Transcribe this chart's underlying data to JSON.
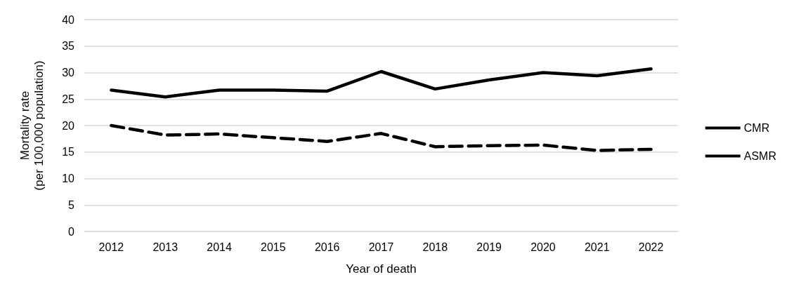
{
  "chart_data": {
    "type": "line",
    "xlabel": "Year of death",
    "ylabel": "Mortality rate\n(per 100,000 population)",
    "categories": [
      "2012",
      "2013",
      "2014",
      "2015",
      "2016",
      "2017",
      "2018",
      "2019",
      "2020",
      "2021",
      "2022"
    ],
    "series": [
      {
        "name": "CMR",
        "color": "#000000",
        "line_style": "solid",
        "values": [
          26.7,
          25.4,
          26.7,
          26.7,
          26.5,
          30.2,
          26.9,
          28.6,
          30.0,
          29.4,
          30.7
        ]
      },
      {
        "name": "ASMR",
        "color": "#000000",
        "line_style": "dashed",
        "values": [
          20.0,
          18.2,
          18.4,
          17.7,
          17.0,
          18.5,
          16.0,
          16.2,
          16.3,
          15.3,
          15.5
        ]
      }
    ],
    "ylim": [
      0,
      40
    ],
    "yticks": [
      0,
      5,
      10,
      15,
      20,
      25,
      30,
      35,
      40
    ],
    "grid": "y",
    "legend": "right",
    "marker": "none"
  }
}
